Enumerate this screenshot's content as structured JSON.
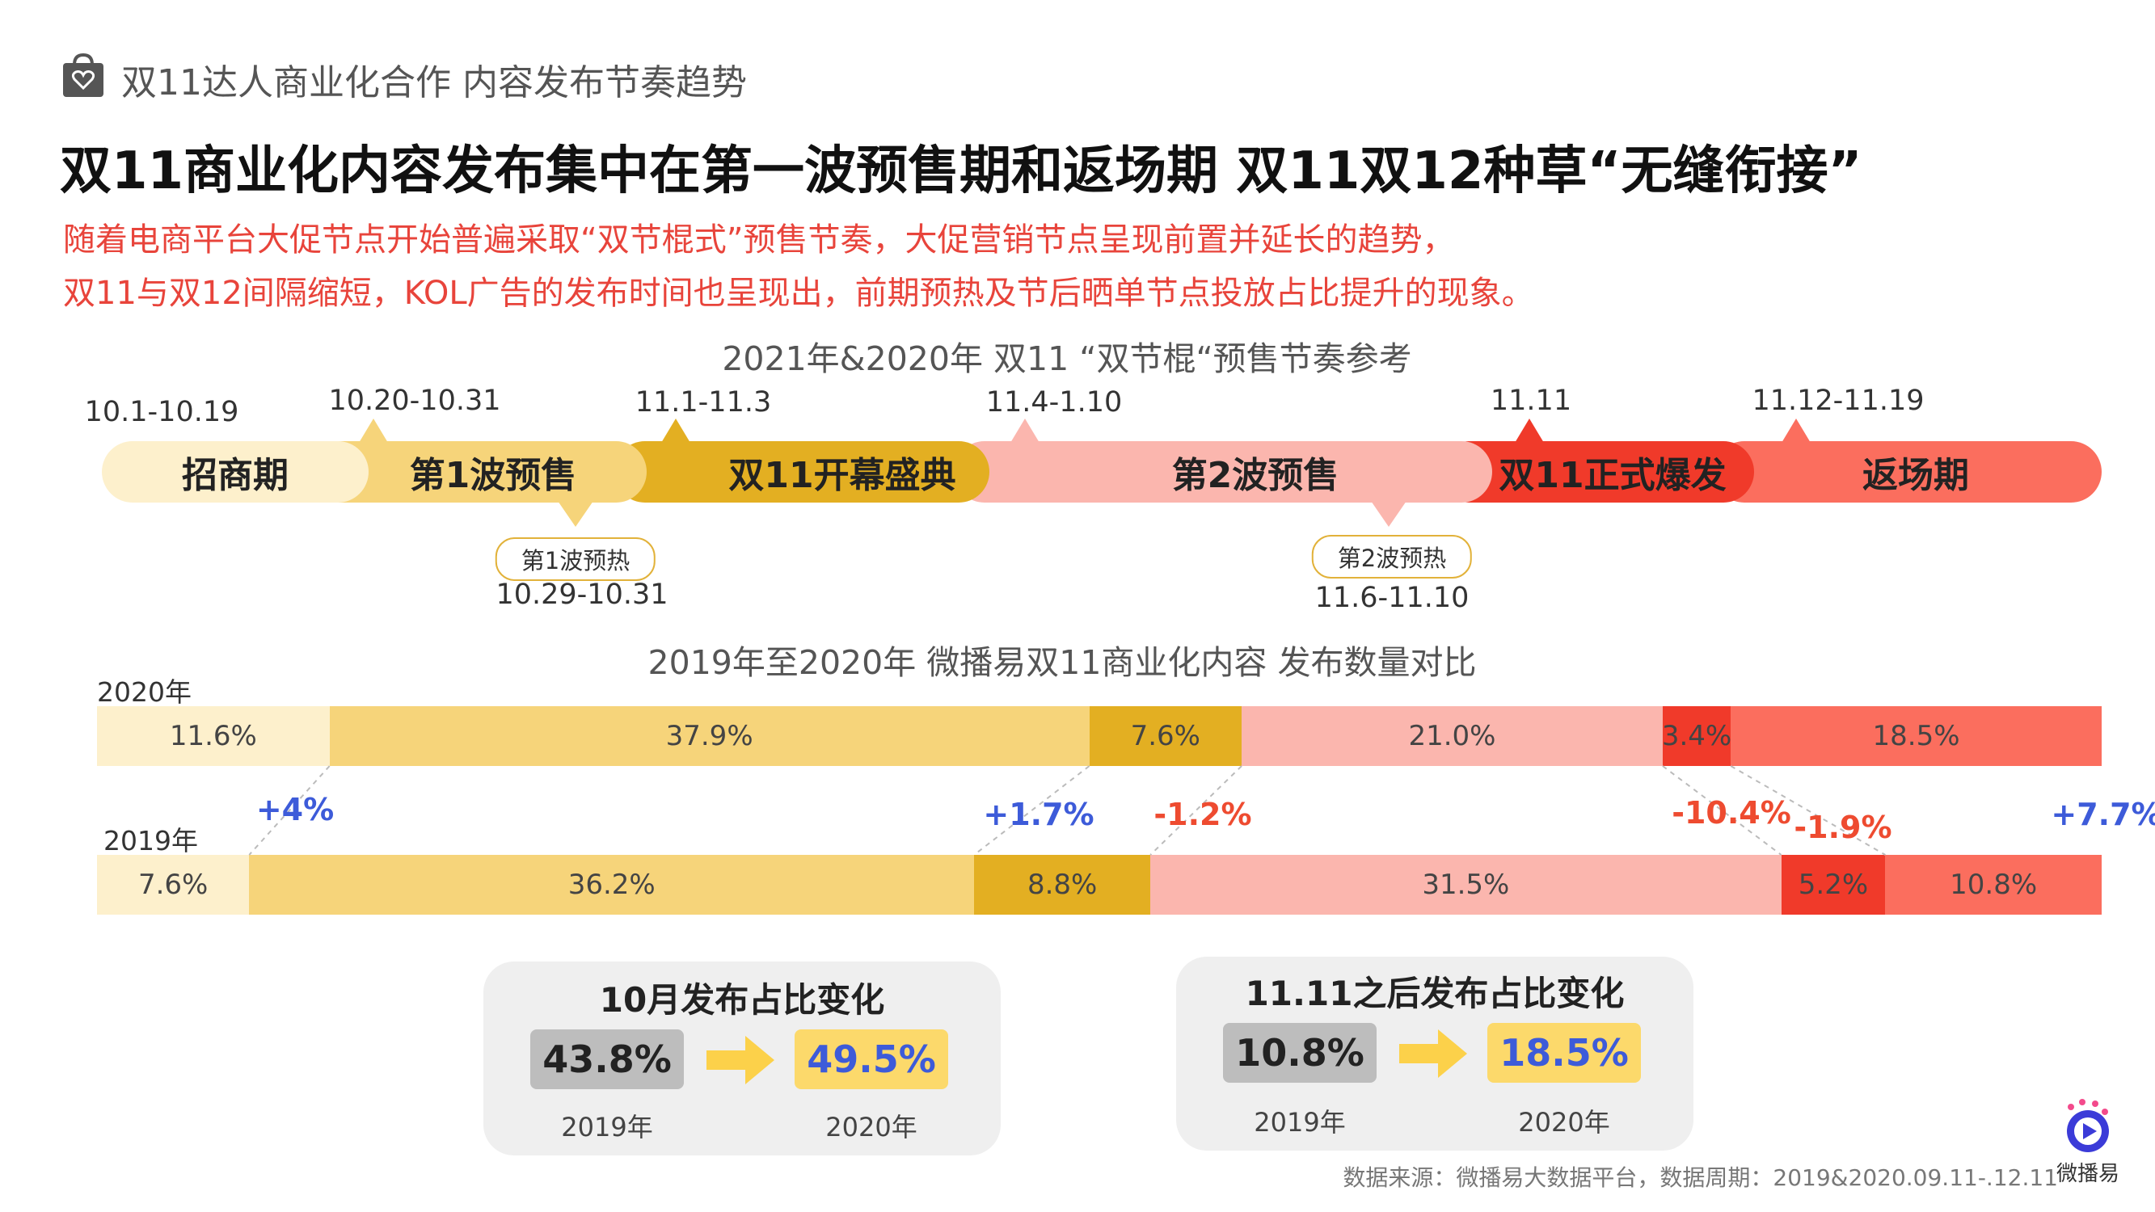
{
  "header": {
    "topic": "双11达人商业化合作 内容发布节奏趋势",
    "headline": "双11商业化内容发布集中在第一波预售期和返场期  双11双12种草“无缝衔接”",
    "lead_lines": [
      "随着电商平台大促节点开始普遍采取“双节棍式”预售节奏，大促营销节点呈现前置并延长的趋势，",
      "双11与双12间隔缩短，KOL广告的发布时间也呈现出，前期预热及节后晒单节点投放占比提升的现象。"
    ]
  },
  "timeline": {
    "title": "2021年&2020年 双11 “双节棍“预售节奏参考",
    "phases": [
      {
        "name": "招商期",
        "date": "10.1-10.19",
        "color": "#fdf0cc"
      },
      {
        "name": "第1波预售",
        "date": "10.20-10.31",
        "color": "#f6d47a"
      },
      {
        "name": "双11开幕盛典",
        "date": "11.1-11.3",
        "color": "#e3af22"
      },
      {
        "name": "第2波预售",
        "date": "11.4-1.10",
        "color": "#fbb6ae"
      },
      {
        "name": "双11正式爆发",
        "date": "11.11",
        "color": "#f03a2a"
      },
      {
        "name": "返场期",
        "date": "11.12-11.19",
        "color": "#fb6e5e"
      }
    ],
    "warmups": [
      {
        "name": "第1波预热",
        "date": "10.29-10.31"
      },
      {
        "name": "第2波预热",
        "date": "11.6-11.10"
      }
    ]
  },
  "chart_data": {
    "type": "bar",
    "stacked": true,
    "orientation": "horizontal",
    "title": "2019年至2020年 微播易双11商业化内容 发布数量对比",
    "categories": [
      "2020年",
      "2019年"
    ],
    "segment_colors": [
      "#fdf0cc",
      "#f6d47a",
      "#e3af22",
      "#fbb6ae",
      "#f03a2a",
      "#fb6e5e"
    ],
    "series": [
      {
        "values": [
          11.6,
          7.6
        ]
      },
      {
        "values": [
          37.9,
          36.2
        ]
      },
      {
        "values": [
          7.6,
          8.8
        ]
      },
      {
        "values": [
          21.0,
          31.5
        ]
      },
      {
        "values": [
          3.4,
          5.2
        ]
      },
      {
        "values": [
          18.5,
          10.8
        ]
      }
    ],
    "segment_labels": [
      [
        "11.6%",
        "37.9%",
        "7.6%",
        "21.0%",
        "3.4%",
        "18.5%"
      ],
      [
        "7.6%",
        "36.2%",
        "8.8%",
        "31.5%",
        "5.2%",
        "10.8%"
      ]
    ],
    "changes": [
      "+4%",
      "+1.7%",
      "-1.2%",
      "-10.4%",
      "-1.9%",
      "+7.7%"
    ],
    "change_colors": {
      "positive": "#3d5bd9",
      "negative": "#ee4b30"
    }
  },
  "summary": [
    {
      "title": "10月发布占比变化",
      "old_value": "43.8%",
      "new_value": "49.5%",
      "old_year": "2019年",
      "new_year": "2020年"
    },
    {
      "title": "11.11之后发布占比变化",
      "old_value": "10.8%",
      "new_value": "18.5%",
      "old_year": "2019年",
      "new_year": "2020年"
    }
  ],
  "footnote": "数据来源：微播易大数据平台，数据周期：2019&2020.09.11-.12.11",
  "logo_text": "微播易"
}
